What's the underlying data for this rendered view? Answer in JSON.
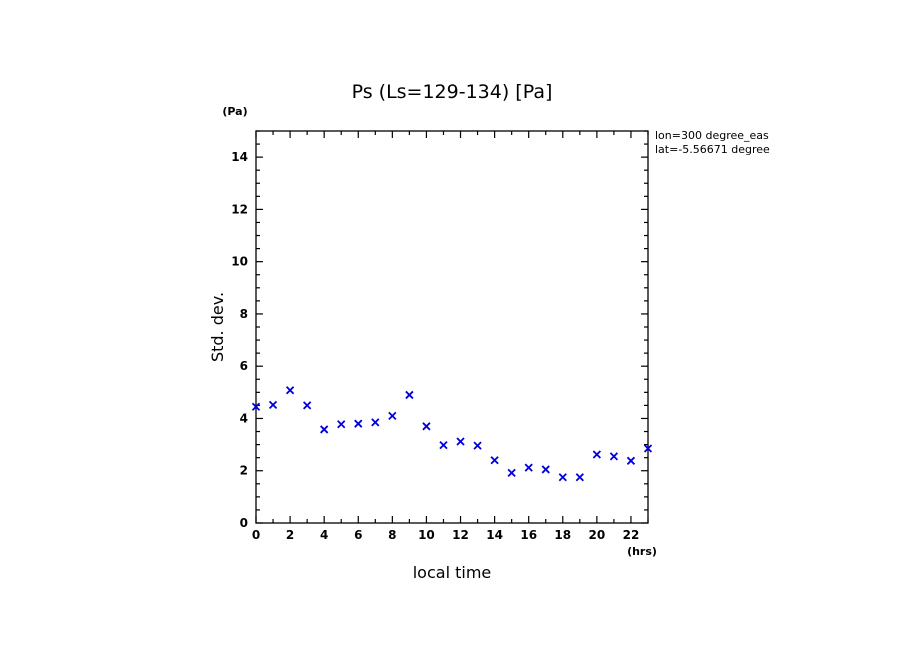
{
  "chart_data": {
    "type": "scatter",
    "title": "Ps (Ls=129-134) [Pa]",
    "xlabel": "local time",
    "ylabel": "Std. dev.",
    "x_unit": "(hrs)",
    "y_unit": "(Pa)",
    "xlim": [
      0,
      23
    ],
    "ylim": [
      0,
      15
    ],
    "x_ticks": [
      0,
      2,
      4,
      6,
      8,
      10,
      12,
      14,
      16,
      18,
      20,
      22
    ],
    "y_ticks": [
      0,
      2,
      4,
      6,
      8,
      10,
      12,
      14
    ],
    "grid": false,
    "marker": "x",
    "marker_color": "#0000dd",
    "annotations": [
      "lon=300 degree_eas",
      "lat=-5.56671 degree"
    ],
    "x": [
      0,
      1,
      2,
      3,
      4,
      5,
      6,
      7,
      8,
      9,
      10,
      11,
      12,
      13,
      14,
      15,
      16,
      17,
      18,
      19,
      20,
      21,
      22,
      23
    ],
    "y": [
      4.45,
      4.52,
      5.08,
      4.5,
      3.58,
      3.78,
      3.8,
      3.85,
      4.1,
      4.9,
      3.7,
      2.98,
      3.12,
      2.96,
      2.4,
      1.92,
      2.12,
      2.05,
      1.75,
      1.75,
      2.62,
      2.55,
      2.38,
      2.85
    ]
  }
}
